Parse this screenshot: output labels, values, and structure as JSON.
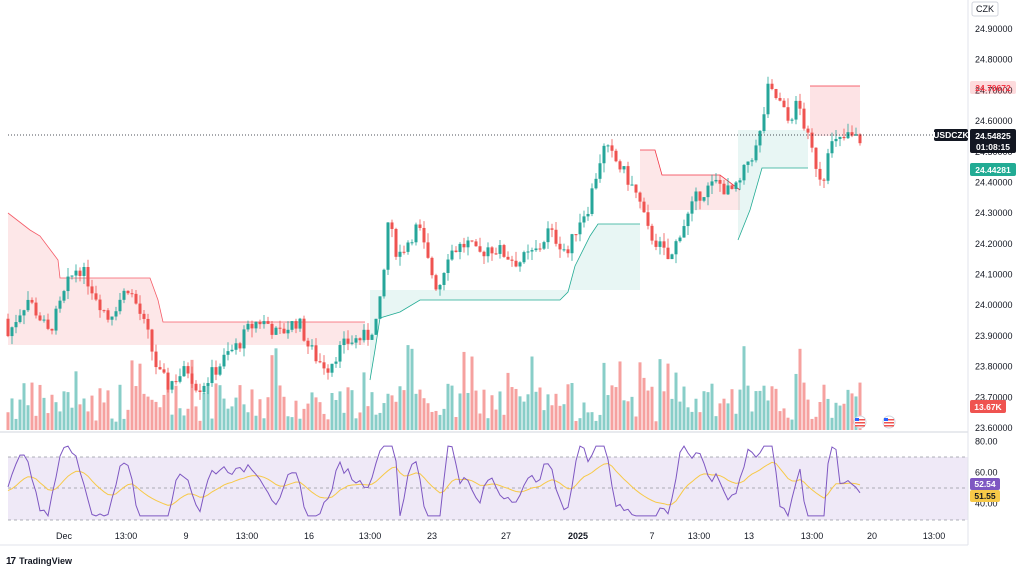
{
  "currency": "CZK",
  "symbol": "USDCZK",
  "price_label": "24.54825",
  "countdown": "01:08:15",
  "upper_target_label": "24.70672",
  "lower_target_label": "24.44281",
  "volume_label": "13.67K",
  "rsi_label": "52.54",
  "rsi_ma_label": "51.55",
  "branding": "TradingView",
  "price_ticks": [
    "24.90000",
    "24.80000",
    "24.70000",
    "24.60000",
    "24.50000",
    "24.40000",
    "24.30000",
    "24.20000",
    "24.10000",
    "24.00000",
    "23.90000",
    "23.80000",
    "23.70000",
    "23.60000"
  ],
  "rsi_ticks": [
    "80.00",
    "60.00",
    "40.00"
  ],
  "time_ticks": [
    "Dec",
    "13:00",
    "9",
    "13:00",
    "16",
    "13:00",
    "23",
    "27",
    "2025",
    "7",
    "13:00",
    "13",
    "13:00",
    "20",
    "13:00"
  ],
  "colors": {
    "up": "#26a69a",
    "down": "#ef5350",
    "rsi": "#7e57c2",
    "rsi_ma": "#f7c948",
    "last": "#131722",
    "upper": "#f23645",
    "lower": "#22ab94"
  },
  "chart_data": {
    "type": "candlestick",
    "y_range": [
      23.6,
      24.93
    ],
    "rsi_range": [
      28,
      80
    ],
    "last_price": 24.54825,
    "upper_level": 24.70672,
    "lower_level": 24.44281,
    "anchor_points": [
      [
        0,
        23.9
      ],
      [
        10,
        23.97
      ],
      [
        20,
        24.02
      ],
      [
        30,
        23.97
      ],
      [
        40,
        23.91
      ],
      [
        50,
        23.98
      ],
      [
        60,
        24.07
      ],
      [
        70,
        24.13
      ],
      [
        80,
        24.08
      ],
      [
        90,
        24.02
      ],
      [
        100,
        23.96
      ],
      [
        110,
        24.01
      ],
      [
        120,
        24.06
      ],
      [
        130,
        23.99
      ],
      [
        140,
        23.9
      ],
      [
        150,
        23.78
      ],
      [
        160,
        23.74
      ],
      [
        170,
        23.77
      ],
      [
        180,
        23.79
      ],
      [
        190,
        23.73
      ],
      [
        200,
        23.76
      ],
      [
        210,
        23.8
      ],
      [
        220,
        23.84
      ],
      [
        230,
        23.87
      ],
      [
        240,
        23.92
      ],
      [
        250,
        23.95
      ],
      [
        260,
        23.94
      ],
      [
        270,
        23.9
      ],
      [
        280,
        23.93
      ],
      [
        290,
        23.95
      ],
      [
        300,
        23.87
      ],
      [
        310,
        23.82
      ],
      [
        320,
        23.8
      ],
      [
        330,
        23.85
      ],
      [
        340,
        23.88
      ],
      [
        350,
        23.89
      ],
      [
        360,
        23.9
      ],
      [
        370,
        23.96
      ],
      [
        375,
        24.07
      ],
      [
        380,
        24.27
      ],
      [
        390,
        24.16
      ],
      [
        400,
        24.21
      ],
      [
        410,
        24.26
      ],
      [
        420,
        24.14
      ],
      [
        430,
        24.05
      ],
      [
        440,
        24.17
      ],
      [
        450,
        24.19
      ],
      [
        460,
        24.2
      ],
      [
        470,
        24.16
      ],
      [
        480,
        24.19
      ],
      [
        490,
        24.18
      ],
      [
        500,
        24.16
      ],
      [
        510,
        24.14
      ],
      [
        520,
        24.16
      ],
      [
        530,
        24.18
      ],
      [
        540,
        24.24
      ],
      [
        550,
        24.21
      ],
      [
        560,
        24.17
      ],
      [
        570,
        24.27
      ],
      [
        580,
        24.32
      ],
      [
        590,
        24.45
      ],
      [
        595,
        24.51
      ],
      [
        600,
        24.5
      ],
      [
        610,
        24.46
      ],
      [
        620,
        24.41
      ],
      [
        630,
        24.35
      ],
      [
        640,
        24.24
      ],
      [
        650,
        24.2
      ],
      [
        660,
        24.15
      ],
      [
        665,
        24.16
      ],
      [
        670,
        24.23
      ],
      [
        680,
        24.29
      ],
      [
        690,
        24.36
      ],
      [
        700,
        24.38
      ],
      [
        710,
        24.4
      ],
      [
        720,
        24.37
      ],
      [
        730,
        24.38
      ],
      [
        740,
        24.47
      ],
      [
        750,
        24.52
      ],
      [
        760,
        24.7
      ],
      [
        770,
        24.67
      ],
      [
        780,
        24.6
      ],
      [
        790,
        24.66
      ],
      [
        800,
        24.54
      ],
      [
        810,
        24.44
      ],
      [
        815,
        24.4
      ],
      [
        820,
        24.52
      ],
      [
        830,
        24.53
      ],
      [
        840,
        24.55
      ],
      [
        850,
        24.54
      ],
      [
        860,
        24.55
      ]
    ]
  }
}
